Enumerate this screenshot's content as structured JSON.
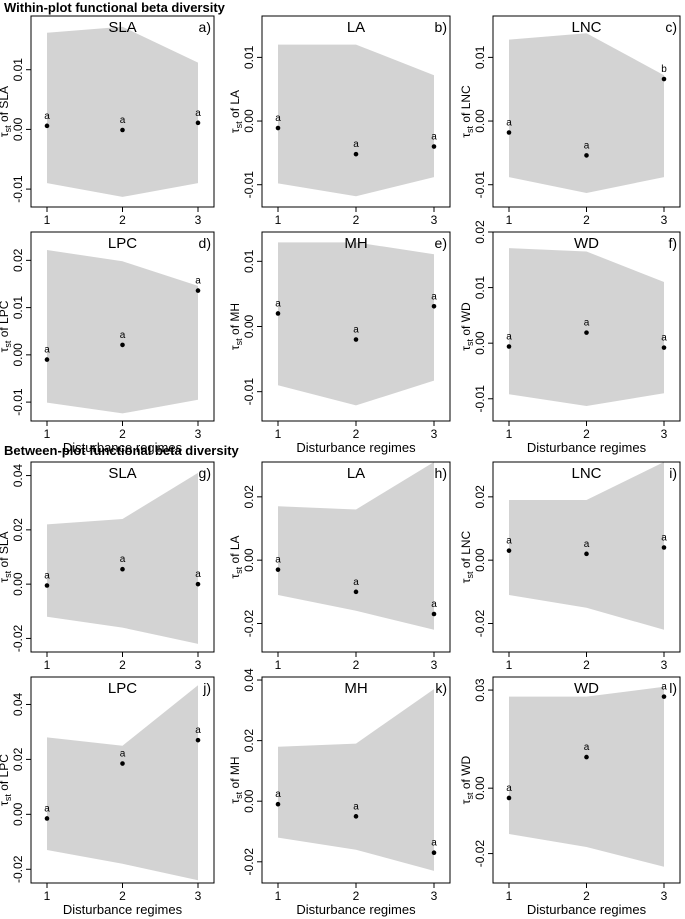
{
  "section_titles": {
    "within": "Within-plot functional beta diversity",
    "between": "Between-plot functional beta diversity"
  },
  "colors": {
    "envelope": "#d3d3d3",
    "point": "#000000",
    "frame": "#000000"
  },
  "chart_data": [
    {
      "type": "scatter",
      "id": "a",
      "panel_label": "a)",
      "title": "SLA",
      "ylabel_prefix": "τst of ",
      "ylabel_suffix": "SLA",
      "xlabel": "",
      "x": [
        1,
        2,
        3
      ],
      "xticks": [
        "1",
        "2",
        "3"
      ],
      "ylim": [
        -0.013,
        0.019
      ],
      "yticks": [
        -0.01,
        0,
        0.01
      ],
      "ytick_labels": [
        "-0.01",
        "0.00",
        "0.01"
      ],
      "values": [
        0.0006,
        -0.0001,
        0.0011
      ],
      "letters": [
        "a",
        "a",
        "a"
      ],
      "envelope_upper": [
        0.0162,
        0.0172,
        0.0112
      ],
      "envelope_lower": [
        -0.009,
        -0.0113,
        -0.009
      ]
    },
    {
      "type": "scatter",
      "id": "b",
      "panel_label": "b)",
      "title": "LA",
      "ylabel_prefix": "τst of ",
      "ylabel_suffix": "LA",
      "xlabel": "",
      "x": [
        1,
        2,
        3
      ],
      "xticks": [
        "1",
        "2",
        "3"
      ],
      "ylim": [
        -0.0135,
        0.0165
      ],
      "yticks": [
        -0.01,
        0,
        0.01
      ],
      "ytick_labels": [
        "-0.01",
        "0.00",
        "0.01"
      ],
      "values": [
        -0.0011,
        -0.0052,
        -0.004
      ],
      "letters": [
        "a",
        "a",
        "a"
      ],
      "envelope_upper": [
        0.012,
        0.012,
        0.0072
      ],
      "envelope_lower": [
        -0.0098,
        -0.0118,
        -0.0088
      ]
    },
    {
      "type": "scatter",
      "id": "c",
      "panel_label": "c)",
      "title": "LNC",
      "ylabel_prefix": "τst of ",
      "ylabel_suffix": "LNC",
      "xlabel": "",
      "x": [
        1,
        2,
        3
      ],
      "xticks": [
        "1",
        "2",
        "3"
      ],
      "ylim": [
        -0.0135,
        0.0165
      ],
      "yticks": [
        -0.01,
        0,
        0.01
      ],
      "ytick_labels": [
        "-0.01",
        "0.00",
        "0.01"
      ],
      "values": [
        -0.0018,
        -0.0054,
        0.0066
      ],
      "letters": [
        "a",
        "a",
        "b"
      ],
      "envelope_upper": [
        0.0128,
        0.0138,
        0.0072
      ],
      "envelope_lower": [
        -0.0088,
        -0.0113,
        -0.0088
      ]
    },
    {
      "type": "scatter",
      "id": "d",
      "panel_label": "d)",
      "title": "LPC",
      "ylabel_prefix": "τst of ",
      "ylabel_suffix": "LPC",
      "xlabel": "Disturbance regimes",
      "x": [
        1,
        2,
        3
      ],
      "xticks": [
        "1",
        "2",
        "3"
      ],
      "ylim": [
        -0.014,
        0.026
      ],
      "yticks": [
        -0.01,
        0,
        0.01,
        0.02
      ],
      "ytick_labels": [
        "-0.01",
        "0.00",
        "0.01",
        "0.02"
      ],
      "values": [
        -0.001,
        0.0021,
        0.0136
      ],
      "letters": [
        "a",
        "a",
        "a"
      ],
      "envelope_upper": [
        0.0222,
        0.0198,
        0.0146
      ],
      "envelope_lower": [
        -0.0101,
        -0.0124,
        -0.0095
      ]
    },
    {
      "type": "scatter",
      "id": "e",
      "panel_label": "e)",
      "title": "MH",
      "ylabel_prefix": "τst of ",
      "ylabel_suffix": "MH",
      "xlabel": "Disturbance regimes",
      "x": [
        1,
        2,
        3
      ],
      "xticks": [
        "1",
        "2",
        "3"
      ],
      "ylim": [
        -0.0145,
        0.0145
      ],
      "yticks": [
        -0.01,
        0,
        0.01
      ],
      "ytick_labels": [
        "-0.01",
        "0.00",
        "0.01"
      ],
      "values": [
        0.002,
        -0.002,
        0.0031
      ],
      "letters": [
        "a",
        "a",
        "a"
      ],
      "envelope_upper": [
        0.0129,
        0.0129,
        0.0111
      ],
      "envelope_lower": [
        -0.009,
        -0.0121,
        -0.0083
      ]
    },
    {
      "type": "scatter",
      "id": "f",
      "panel_label": "f)",
      "title": "WD",
      "ylabel_prefix": "τst of ",
      "ylabel_suffix": "WD",
      "xlabel": "Disturbance regimes",
      "x": [
        1,
        2,
        3
      ],
      "xticks": [
        "1",
        "2",
        "3"
      ],
      "ylim": [
        -0.014,
        0.02
      ],
      "yticks": [
        -0.01,
        0,
        0.01,
        0.02
      ],
      "ytick_labels": [
        "-0.01",
        "0.00",
        "0.01",
        "0.02"
      ],
      "values": [
        -0.0006,
        0.0019,
        -0.0008
      ],
      "letters": [
        "a",
        "a",
        "a"
      ],
      "envelope_upper": [
        0.0171,
        0.0165,
        0.011
      ],
      "envelope_lower": [
        -0.0092,
        -0.0113,
        -0.009
      ]
    },
    {
      "type": "scatter",
      "id": "g",
      "panel_label": "g)",
      "title": "SLA",
      "ylabel_prefix": "τst of ",
      "ylabel_suffix": "SLA",
      "xlabel": "",
      "x": [
        1,
        2,
        3
      ],
      "xticks": [
        "1",
        "2",
        "3"
      ],
      "ylim": [
        -0.025,
        0.045
      ],
      "yticks": [
        -0.02,
        0,
        0.02,
        0.04
      ],
      "ytick_labels": [
        "-0.02",
        "0.00",
        "0.02",
        "0.04"
      ],
      "values": [
        -0.0005,
        0.0055,
        0.0
      ],
      "letters": [
        "a",
        "a",
        "a"
      ],
      "envelope_upper": [
        0.022,
        0.024,
        0.041
      ],
      "envelope_lower": [
        -0.012,
        -0.016,
        -0.022
      ]
    },
    {
      "type": "scatter",
      "id": "h",
      "panel_label": "h)",
      "title": "LA",
      "ylabel_prefix": "τst of ",
      "ylabel_suffix": "LA",
      "xlabel": "",
      "x": [
        1,
        2,
        3
      ],
      "xticks": [
        "1",
        "2",
        "3"
      ],
      "ylim": [
        -0.029,
        0.031
      ],
      "yticks": [
        -0.02,
        0,
        0.02
      ],
      "ytick_labels": [
        "-0.02",
        "0.00",
        "0.02"
      ],
      "values": [
        -0.003,
        -0.01,
        -0.017
      ],
      "letters": [
        "a",
        "a",
        "a"
      ],
      "envelope_upper": [
        0.017,
        0.016,
        0.031
      ],
      "envelope_lower": [
        -0.011,
        -0.016,
        -0.022
      ]
    },
    {
      "type": "scatter",
      "id": "i",
      "panel_label": "i)",
      "title": "LNC",
      "ylabel_prefix": "τst of ",
      "ylabel_suffix": "LNC",
      "xlabel": "",
      "x": [
        1,
        2,
        3
      ],
      "xticks": [
        "1",
        "2",
        "3"
      ],
      "ylim": [
        -0.029,
        0.031
      ],
      "yticks": [
        -0.02,
        0,
        0.02
      ],
      "ytick_labels": [
        "-0.02",
        "0.00",
        "0.02"
      ],
      "values": [
        0.003,
        0.002,
        0.004
      ],
      "letters": [
        "a",
        "a",
        "a"
      ],
      "envelope_upper": [
        0.019,
        0.019,
        0.031
      ],
      "envelope_lower": [
        -0.011,
        -0.015,
        -0.022
      ]
    },
    {
      "type": "scatter",
      "id": "j",
      "panel_label": "j)",
      "title": "LPC",
      "ylabel_prefix": "τst of ",
      "ylabel_suffix": "LPC",
      "xlabel": "Disturbance regimes",
      "x": [
        1,
        2,
        3
      ],
      "xticks": [
        "1",
        "2",
        "3"
      ],
      "ylim": [
        -0.025,
        0.05
      ],
      "yticks": [
        -0.02,
        0,
        0.02,
        0.04
      ],
      "ytick_labels": [
        "-0.02",
        "0.00",
        "0.02",
        "0.04"
      ],
      "values": [
        -0.0015,
        0.0185,
        0.027
      ],
      "letters": [
        "a",
        "a",
        "a"
      ],
      "envelope_upper": [
        0.028,
        0.025,
        0.047
      ],
      "envelope_lower": [
        -0.013,
        -0.018,
        -0.024
      ]
    },
    {
      "type": "scatter",
      "id": "k",
      "panel_label": "k)",
      "title": "MH",
      "ylabel_prefix": "τst of ",
      "ylabel_suffix": "MH",
      "xlabel": "Disturbance regimes",
      "x": [
        1,
        2,
        3
      ],
      "xticks": [
        "1",
        "2",
        "3"
      ],
      "ylim": [
        -0.027,
        0.041
      ],
      "yticks": [
        -0.02,
        0,
        0.02,
        0.04
      ],
      "ytick_labels": [
        "-0.02",
        "0.00",
        "0.02",
        "0.04"
      ],
      "values": [
        -0.001,
        -0.005,
        -0.017
      ],
      "letters": [
        "a",
        "a",
        "a"
      ],
      "envelope_upper": [
        0.018,
        0.019,
        0.037
      ],
      "envelope_lower": [
        -0.012,
        -0.016,
        -0.023
      ]
    },
    {
      "type": "scatter",
      "id": "l",
      "panel_label": "l)",
      "title": "WD",
      "ylabel_prefix": "τst of ",
      "ylabel_suffix": "WD",
      "xlabel": "Disturbance regimes",
      "x": [
        1,
        2,
        3
      ],
      "xticks": [
        "1",
        "2",
        "3"
      ],
      "ylim": [
        -0.029,
        0.034
      ],
      "yticks": [
        -0.02,
        0,
        0.03
      ],
      "ytick_labels": [
        "-0.02",
        "0.00",
        "0.03"
      ],
      "values": [
        -0.003,
        0.0095,
        0.028
      ],
      "letters": [
        "a",
        "a",
        "a"
      ],
      "envelope_upper": [
        0.028,
        0.028,
        0.031
      ],
      "envelope_lower": [
        -0.014,
        -0.018,
        -0.024
      ]
    }
  ]
}
